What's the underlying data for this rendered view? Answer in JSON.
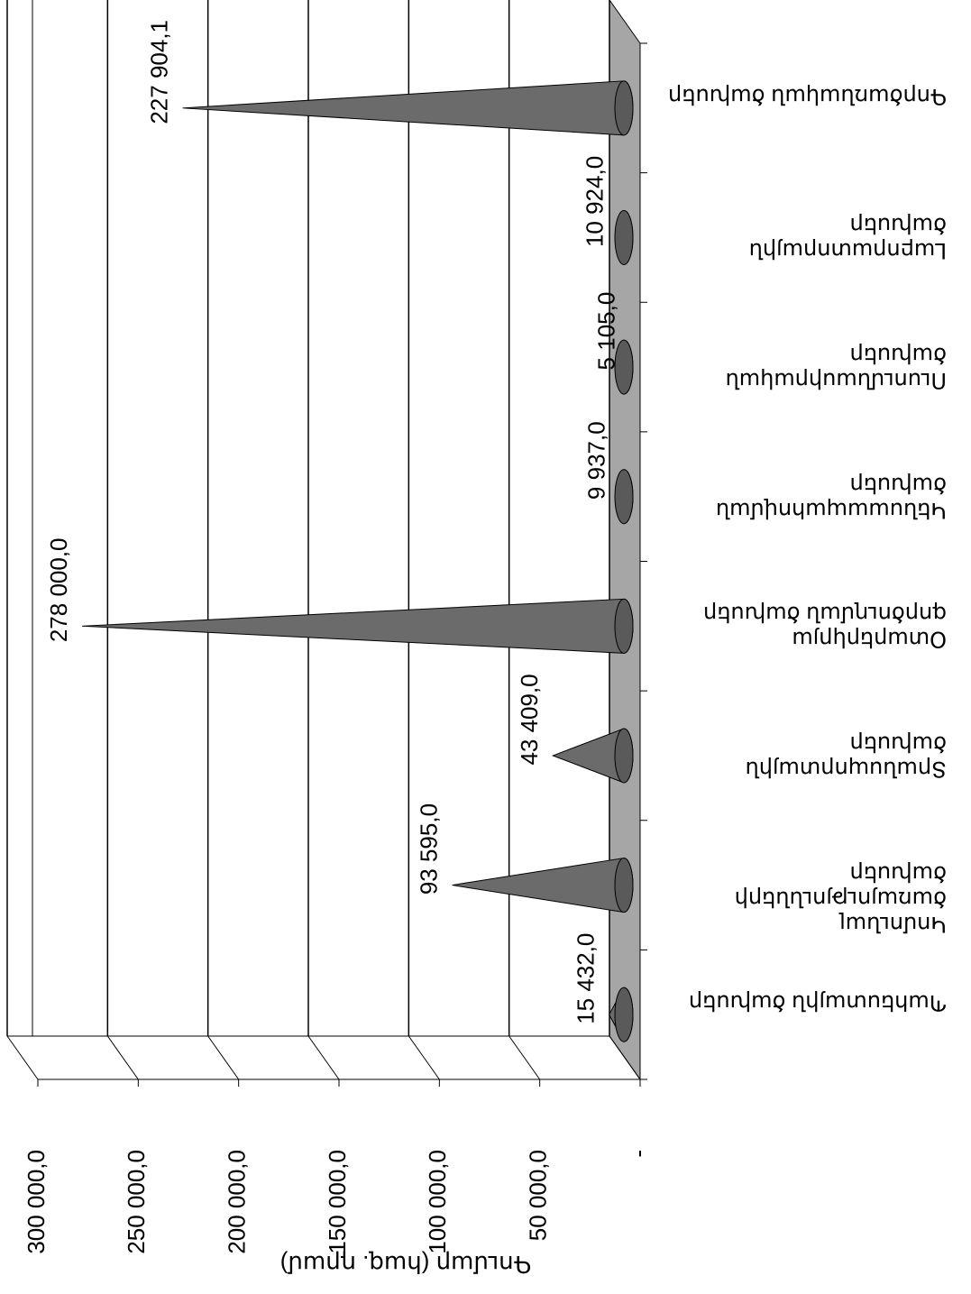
{
  "chart_data": {
    "type": "cone",
    "y_axis_label": "Գումար (հազ. դրամ)",
    "categories": [
      "Պահեստային ծախսեր",
      "Կոմունալ ծառայությունների ծախսեր",
      "Տրանսպորտային ծախսեր",
      "Օտարերկրյա գործուղման ծախսեր",
      "Կենսաապահովման ծախսեր",
      "Ուսումնասիրական ծախսեր",
      "Լաբորատորային ծախսեր",
      "Գործառնական ծախսեր"
    ],
    "values": [
      15432,
      93595,
      43409,
      278000,
      9937,
      5105,
      10924,
      227904.1
    ],
    "value_labels": [
      "15 432,0",
      "93 595,0",
      "43 409,0",
      "278 000,0",
      "9 937,0",
      "5 105,0",
      "10 924,0",
      "227 904,1"
    ],
    "color": "#6b6b6b",
    "ylim": [
      0,
      300000
    ],
    "yticks": [
      {
        "value": 0,
        "label": "-"
      },
      {
        "value": 50000,
        "label": "50 000,0"
      },
      {
        "value": 100000,
        "label": "100 000,0"
      },
      {
        "value": 150000,
        "label": "150 000,0"
      },
      {
        "value": 200000,
        "label": "200 000,0"
      },
      {
        "value": 250000,
        "label": "250 000,0"
      },
      {
        "value": 300000,
        "label": "300 000,0"
      }
    ],
    "grid": true
  }
}
